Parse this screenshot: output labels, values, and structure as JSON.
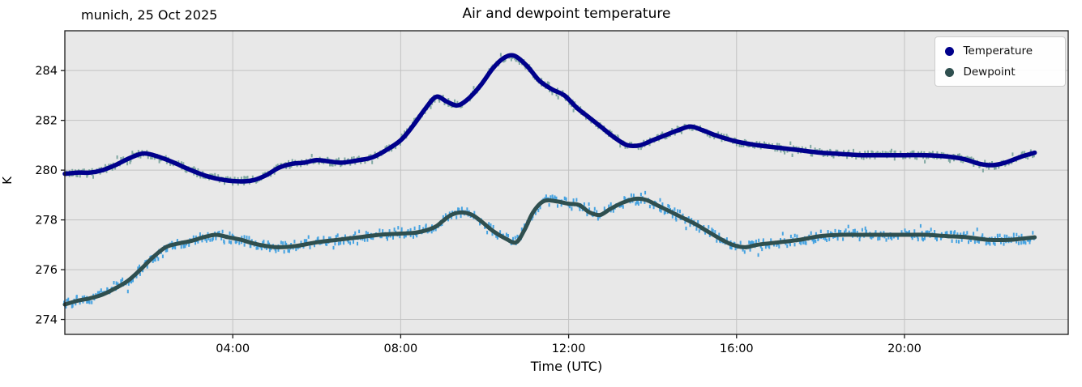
{
  "header": {
    "corner_label": "munich, 25 Oct 2025",
    "title": "Air and dewpoint temperature"
  },
  "axes": {
    "xlabel": "Time (UTC)",
    "ylabel": "K"
  },
  "legend": {
    "items": [
      {
        "label": "Temperature",
        "color": "#00008b"
      },
      {
        "label": "Dewpoint",
        "color": "#2f4f4f"
      }
    ]
  },
  "chart_data": {
    "type": "line",
    "title": "Air and dewpoint temperature",
    "subtitle": "munich, 25 Oct 2025",
    "xlabel": "Time (UTC)",
    "ylabel": "K",
    "xlim_hours": [
      0,
      23.9
    ],
    "ylim": [
      273.4,
      285.6
    ],
    "grid": true,
    "plot_bg": "#e8e8e8",
    "grid_color": "#c2c2c2",
    "spine_color": "#1a1a1a",
    "xticks": [
      {
        "hour": 4,
        "label": "04:00"
      },
      {
        "hour": 8,
        "label": "08:00"
      },
      {
        "hour": 12,
        "label": "12:00"
      },
      {
        "hour": 16,
        "label": "16:00"
      },
      {
        "hour": 20,
        "label": "20:00"
      }
    ],
    "yticks": [
      274,
      276,
      278,
      280,
      282,
      284
    ],
    "legend_position": "upper right",
    "series": [
      {
        "name": "Temperature",
        "color": "#00008b",
        "raw_color": "#7aa49e",
        "raw_noise": 0.13,
        "line_width": 5.5,
        "x": [
          0,
          0.3,
          0.6,
          0.9,
          1.2,
          1.5,
          1.8,
          2.0,
          2.3,
          2.6,
          3.0,
          3.4,
          3.8,
          4.2,
          4.5,
          4.8,
          5.1,
          5.4,
          5.7,
          6.0,
          6.3,
          6.6,
          7.0,
          7.3,
          7.6,
          8.0,
          8.3,
          8.6,
          8.85,
          9.1,
          9.35,
          9.6,
          9.9,
          10.2,
          10.45,
          10.7,
          11.0,
          11.3,
          11.6,
          11.9,
          12.2,
          12.5,
          12.8,
          13.1,
          13.4,
          13.7,
          14.0,
          14.3,
          14.6,
          14.9,
          15.2,
          15.5,
          16.0,
          16.5,
          17.0,
          17.5,
          18.0,
          18.5,
          19.0,
          19.5,
          20.0,
          20.5,
          21.0,
          21.4,
          21.8,
          22.1,
          22.4,
          22.8,
          23.1
        ],
        "y": [
          279.85,
          279.9,
          279.9,
          280.0,
          280.2,
          280.45,
          280.65,
          280.65,
          280.5,
          280.3,
          280.0,
          279.75,
          279.6,
          279.55,
          279.6,
          279.8,
          280.1,
          280.25,
          280.3,
          280.4,
          280.35,
          280.3,
          280.4,
          280.5,
          280.75,
          281.2,
          281.8,
          282.5,
          282.95,
          282.75,
          282.6,
          282.85,
          283.4,
          284.1,
          284.5,
          284.6,
          284.2,
          283.6,
          283.25,
          283.0,
          282.5,
          282.1,
          281.7,
          281.3,
          281.0,
          281.0,
          281.2,
          281.4,
          281.6,
          281.75,
          281.6,
          281.4,
          281.15,
          281.0,
          280.9,
          280.8,
          280.7,
          280.65,
          280.6,
          280.6,
          280.6,
          280.6,
          280.55,
          280.45,
          280.25,
          280.2,
          280.3,
          280.55,
          280.7
        ]
      },
      {
        "name": "Dewpoint",
        "color": "#2f4f4f",
        "raw_color": "#3d9fe0",
        "raw_noise": 0.2,
        "line_width": 5,
        "x": [
          0,
          0.3,
          0.6,
          0.9,
          1.2,
          1.5,
          1.8,
          2.1,
          2.4,
          2.7,
          3.0,
          3.3,
          3.6,
          3.9,
          4.2,
          4.5,
          4.8,
          5.1,
          5.5,
          6.0,
          6.5,
          7.0,
          7.5,
          8.0,
          8.4,
          8.8,
          9.0,
          9.2,
          9.45,
          9.7,
          9.95,
          10.2,
          10.5,
          10.75,
          10.95,
          11.15,
          11.4,
          11.7,
          12.0,
          12.25,
          12.5,
          12.75,
          13.0,
          13.3,
          13.6,
          13.85,
          14.1,
          14.4,
          14.7,
          15.0,
          15.3,
          15.6,
          15.9,
          16.2,
          16.5,
          17.0,
          17.5,
          18.0,
          18.5,
          19.0,
          19.5,
          20.0,
          20.5,
          21.0,
          21.5,
          22.0,
          22.5,
          23.1
        ],
        "y": [
          274.6,
          274.75,
          274.85,
          275.0,
          275.25,
          275.55,
          276.0,
          276.5,
          276.9,
          277.05,
          277.15,
          277.3,
          277.4,
          277.3,
          277.2,
          277.05,
          276.95,
          276.9,
          276.95,
          277.1,
          277.2,
          277.3,
          277.4,
          277.45,
          277.5,
          277.7,
          277.95,
          278.2,
          278.3,
          278.2,
          277.9,
          277.55,
          277.25,
          277.1,
          277.6,
          278.3,
          278.75,
          278.75,
          278.65,
          278.6,
          278.3,
          278.2,
          278.45,
          278.7,
          278.85,
          278.8,
          278.6,
          278.35,
          278.1,
          277.85,
          277.55,
          277.25,
          277.0,
          276.9,
          277.0,
          277.1,
          277.2,
          277.35,
          277.4,
          277.4,
          277.4,
          277.4,
          277.4,
          277.35,
          277.3,
          277.2,
          277.2,
          277.3
        ]
      }
    ]
  }
}
